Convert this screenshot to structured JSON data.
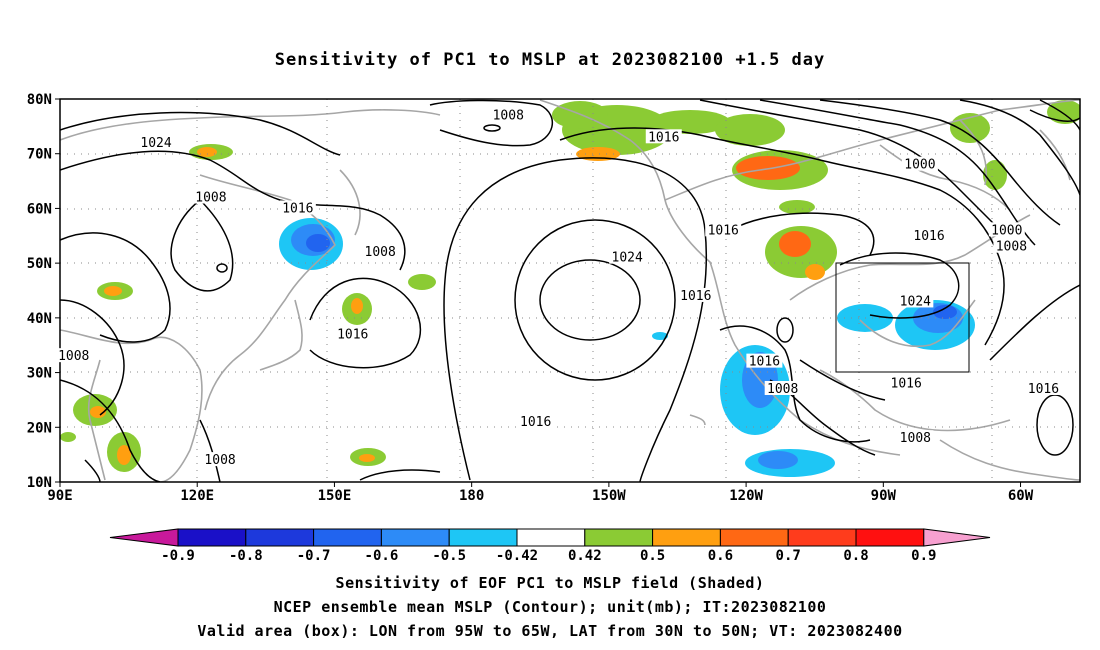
{
  "title": "Sensitivity of PC1 to MSLP at 2023082100 +1.5 day",
  "lat_labels": [
    "80N",
    "70N",
    "60N",
    "50N",
    "40N",
    "30N",
    "20N",
    "10N"
  ],
  "lon_labels": [
    "90E",
    "120E",
    "150E",
    "180",
    "150W",
    "120W",
    "90W",
    "60W"
  ],
  "contour_labels": [
    {
      "text": "1008",
      "lon": -172,
      "lat": 77
    },
    {
      "text": "1024",
      "lon": 111,
      "lat": 72
    },
    {
      "text": "1016",
      "lon": -138,
      "lat": 73
    },
    {
      "text": "1000",
      "lon": -82,
      "lat": 68
    },
    {
      "text": "1008",
      "lon": 123,
      "lat": 62
    },
    {
      "text": "1016",
      "lon": 142,
      "lat": 60
    },
    {
      "text": "1008",
      "lon": 160,
      "lat": 52
    },
    {
      "text": "1024",
      "lon": -146,
      "lat": 51
    },
    {
      "text": "1016",
      "lon": -131,
      "lat": 44
    },
    {
      "text": "1016",
      "lon": -125,
      "lat": 56
    },
    {
      "text": "1016",
      "lon": -80,
      "lat": 55
    },
    {
      "text": "1000",
      "lon": -63,
      "lat": 56
    },
    {
      "text": "1008",
      "lon": -62,
      "lat": 53
    },
    {
      "text": "1024",
      "lon": -83,
      "lat": 43
    },
    {
      "text": "1016",
      "lon": 154,
      "lat": 37
    },
    {
      "text": "1008",
      "lon": 93,
      "lat": 33
    },
    {
      "text": "1016",
      "lon": -116,
      "lat": 32
    },
    {
      "text": "1008",
      "lon": -112,
      "lat": 27
    },
    {
      "text": "1016",
      "lon": -166,
      "lat": 21
    },
    {
      "text": "1016",
      "lon": -85,
      "lat": 28
    },
    {
      "text": "1016",
      "lon": -55,
      "lat": 27
    },
    {
      "text": "1008",
      "lon": -83,
      "lat": 18
    },
    {
      "text": "1008",
      "lon": 125,
      "lat": 14
    }
  ],
  "valid_box": {
    "lon_min": -95,
    "lon_max": -65,
    "lat_min": 30,
    "lat_max": 50
  },
  "colorbar": {
    "colors": [
      "#c8199b",
      "#1a10c8",
      "#1d39dc",
      "#2164ef",
      "#2d8bf7",
      "#1ec6f5",
      "#ffffff",
      "#8bcb34",
      "#ff9f10",
      "#ff6814",
      "#ff3c1c",
      "#ff1010",
      "#f7a0d0"
    ],
    "labels": [
      "-0.9",
      "-0.8",
      "-0.7",
      "-0.6",
      "-0.5",
      "-0.42",
      "0.42",
      "0.5",
      "0.6",
      "0.7",
      "0.8",
      "0.9"
    ]
  },
  "footer": [
    "Sensitivity of EOF PC1 to MSLP field (Shaded)",
    "NCEP ensemble mean MSLP (Contour); unit(mb); IT:2023082100",
    "Valid area (box): LON from 95W to 65W, LAT from 30N to 50N; VT: 2023082400"
  ]
}
